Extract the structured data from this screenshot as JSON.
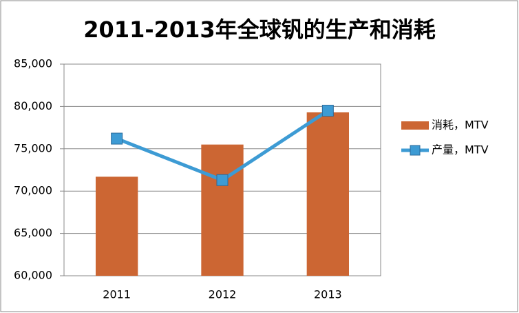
{
  "chart_data": {
    "type": "bar",
    "title": "2011-2013年全球钒的生产和消耗",
    "categories": [
      "2011",
      "2012",
      "2013"
    ],
    "series": [
      {
        "name": "消耗，MTV",
        "type": "bar",
        "color": "#cc6633",
        "values": [
          71700,
          75500,
          79300
        ]
      },
      {
        "name": "产量，MTV",
        "type": "line",
        "color": "#3d9bd4",
        "values": [
          76200,
          71300,
          79500
        ]
      }
    ],
    "ylim": [
      60000,
      85000
    ],
    "yticks": [
      {
        "value": 60000,
        "label": "60,000"
      },
      {
        "value": 65000,
        "label": "65,000"
      },
      {
        "value": 70000,
        "label": "70,000"
      },
      {
        "value": 75000,
        "label": "75,000"
      },
      {
        "value": 80000,
        "label": "80,000"
      },
      {
        "value": 85000,
        "label": "85,000"
      }
    ],
    "grid": true,
    "legend": "right"
  }
}
